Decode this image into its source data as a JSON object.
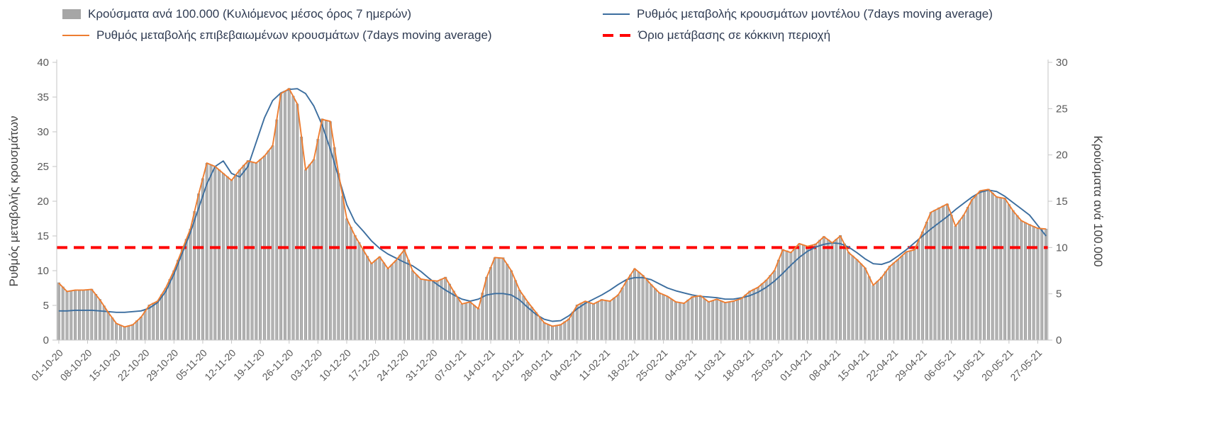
{
  "legend": {
    "items": [
      {
        "label": "Κρούσματα ανά 100.000 (Κυλιόμενος μέσος όρος 7 ημερών)",
        "marker": "bar",
        "color": "#a6a6a6"
      },
      {
        "label": "Ρυθμός μεταβολής κρουσμάτων μοντέλου (7days moving average)",
        "marker": "line",
        "color": "#3c6e9f"
      },
      {
        "label": "Ρυθμός μεταβολής επιβεβαιωμένων κρουσμάτων (7days moving average)",
        "marker": "line",
        "color": "#ed7d31"
      },
      {
        "label": "Όριο μετάβασης σε κόκκινη περιοχή",
        "marker": "dash",
        "color": "#ff0000"
      }
    ]
  },
  "chart_data": {
    "type": "combo bar+line",
    "ylabel_left": "Ρυθμός μεταβολής κρουσμάτων",
    "ylabel_right": "Κρούσματα ανά 100.000",
    "ylim_left": [
      0,
      40
    ],
    "ylim_right": [
      0,
      30
    ],
    "yticks_left": [
      0,
      5,
      10,
      15,
      20,
      25,
      30,
      35,
      40
    ],
    "yticks_right": [
      0,
      5,
      10,
      15,
      20,
      25,
      30
    ],
    "grid": false,
    "legend_position": "top",
    "n_days": 241,
    "sample_step_days": 2,
    "x_tick_interval_days": 7,
    "x_tick_labels": [
      "01-10-20",
      "08-10-20",
      "15-10-20",
      "22-10-20",
      "29-10-20",
      "05-11-20",
      "12-11-20",
      "19-11-20",
      "26-11-20",
      "03-12-20",
      "10-12-20",
      "17-12-20",
      "24-12-20",
      "31-12-20",
      "07-01-21",
      "14-01-21",
      "21-01-21",
      "28-01-21",
      "04-02-21",
      "11-02-21",
      "18-02-21",
      "25-02-21",
      "04-03-21",
      "11-03-21",
      "18-03-21",
      "25-03-21",
      "01-04-21",
      "08-04-21",
      "15-04-21",
      "22-04-21",
      "29-04-21",
      "06-05-21",
      "13-05-21",
      "20-05-21",
      "27-05-21"
    ],
    "threshold": {
      "label": "Όριο μετάβασης σε κόκκινη περιοχή",
      "value_right_axis": 10,
      "value_left_axis": 13.3,
      "color": "#ff0000"
    },
    "series": [
      {
        "name": "Κρούσματα ανά 100.000 (Κυλιόμενος μέσος όρος 7 ημερών)",
        "type": "bar",
        "axis": "right",
        "color": "#b3b3b3",
        "stroke": "#8f8f8f",
        "values": [
          6.2,
          5.3,
          5.4,
          5.4,
          5.5,
          4.4,
          3.0,
          1.8,
          1.4,
          1.7,
          2.5,
          3.8,
          4.2,
          5.6,
          7.5,
          9.8,
          12.0,
          15.8,
          19.1,
          18.8,
          18.0,
          17.3,
          18.4,
          19.4,
          19.1,
          19.9,
          21.0,
          26.6,
          27.2,
          25.5,
          18.4,
          19.5,
          23.9,
          23.6,
          18.0,
          13.1,
          11.3,
          9.8,
          8.3,
          9.0,
          7.7,
          8.6,
          9.8,
          7.5,
          6.6,
          6.5,
          6.4,
          6.8,
          5.3,
          3.9,
          4.1,
          3.4,
          6.8,
          8.9,
          8.9,
          7.5,
          5.4,
          4.1,
          3.0,
          1.9,
          1.5,
          1.7,
          2.3,
          3.8,
          4.2,
          3.9,
          4.4,
          4.2,
          4.9,
          6.4,
          7.7,
          7.0,
          6.0,
          5.1,
          4.7,
          4.1,
          4.0,
          4.7,
          4.8,
          4.1,
          4.4,
          4.1,
          4.2,
          4.5,
          5.3,
          5.7,
          6.5,
          7.5,
          9.8,
          9.5,
          10.4,
          10.1,
          10.4,
          11.2,
          10.5,
          11.3,
          9.5,
          8.7,
          7.8,
          5.9,
          6.8,
          8.0,
          8.7,
          9.5,
          9.8,
          11.7,
          13.8,
          14.3,
          14.7,
          12.3,
          13.5,
          15.2,
          16.1,
          16.3,
          15.5,
          15.3,
          14.0,
          12.9,
          12.5,
          12.1,
          12.0
        ]
      },
      {
        "name": "Ρυθμός μεταβολής κρουσμάτων μοντέλου (7days moving average)",
        "type": "line",
        "axis": "left",
        "color": "#3c6e9f",
        "values": [
          4.2,
          4.2,
          4.3,
          4.3,
          4.3,
          4.2,
          4.1,
          4.0,
          4.0,
          4.1,
          4.2,
          4.6,
          5.4,
          7.0,
          9.5,
          12.5,
          15.5,
          19.0,
          22.5,
          25.0,
          25.8,
          24.0,
          23.5,
          25.0,
          28.5,
          32.0,
          34.5,
          35.6,
          36.1,
          36.2,
          35.5,
          33.7,
          31.0,
          27.5,
          23.5,
          19.5,
          17.0,
          15.7,
          14.3,
          13.2,
          12.4,
          11.8,
          11.2,
          10.7,
          9.9,
          8.9,
          8.0,
          7.2,
          6.5,
          5.9,
          5.6,
          5.9,
          6.5,
          6.7,
          6.7,
          6.5,
          5.8,
          4.7,
          3.7,
          3.0,
          2.7,
          2.8,
          3.5,
          4.5,
          5.3,
          5.9,
          6.5,
          7.2,
          8.0,
          8.7,
          9.0,
          9.0,
          8.7,
          8.1,
          7.5,
          7.1,
          6.8,
          6.5,
          6.3,
          6.2,
          6.1,
          5.9,
          5.9,
          6.1,
          6.4,
          6.9,
          7.6,
          8.5,
          9.6,
          10.8,
          11.9,
          12.8,
          13.4,
          13.8,
          14.0,
          13.9,
          13.4,
          12.6,
          11.7,
          11.0,
          10.9,
          11.3,
          12.1,
          13.0,
          14.0,
          15.0,
          16.0,
          16.9,
          17.8,
          18.8,
          19.7,
          20.6,
          21.3,
          21.6,
          21.4,
          20.7,
          19.8,
          18.9,
          18.0,
          16.5,
          15.0
        ]
      },
      {
        "name": "Ρυθμός μεταβολής επιβεβαιωμένων κρουσμάτων (7days moving average)",
        "type": "line",
        "axis": "left",
        "color": "#ed7d31",
        "values": [
          8.2,
          7.0,
          7.2,
          7.2,
          7.3,
          5.8,
          4.0,
          2.4,
          1.9,
          2.2,
          3.3,
          5.0,
          5.6,
          7.5,
          10.0,
          13.0,
          16.0,
          21.0,
          25.5,
          25.0,
          24.0,
          23.0,
          24.5,
          25.8,
          25.5,
          26.5,
          28.0,
          35.5,
          36.2,
          34.0,
          24.5,
          26.0,
          31.8,
          31.5,
          24.0,
          17.5,
          15.0,
          13.0,
          11.0,
          12.0,
          10.3,
          11.5,
          13.0,
          10.0,
          8.8,
          8.6,
          8.5,
          9.0,
          7.0,
          5.2,
          5.5,
          4.5,
          9.0,
          11.9,
          11.8,
          10.0,
          7.2,
          5.5,
          4.0,
          2.5,
          2.0,
          2.2,
          3.0,
          5.0,
          5.6,
          5.2,
          5.8,
          5.6,
          6.5,
          8.5,
          10.3,
          9.3,
          8.0,
          6.8,
          6.3,
          5.5,
          5.3,
          6.2,
          6.4,
          5.5,
          5.9,
          5.4,
          5.6,
          6.0,
          7.0,
          7.6,
          8.6,
          10.0,
          13.0,
          12.6,
          13.9,
          13.5,
          13.8,
          14.9,
          14.0,
          15.0,
          12.6,
          11.6,
          10.4,
          7.9,
          9.0,
          10.6,
          11.6,
          12.7,
          13.0,
          15.6,
          18.4,
          19.0,
          19.6,
          16.4,
          18.0,
          20.2,
          21.5,
          21.7,
          20.6,
          20.4,
          18.6,
          17.2,
          16.6,
          16.1,
          16.0
        ]
      }
    ]
  }
}
